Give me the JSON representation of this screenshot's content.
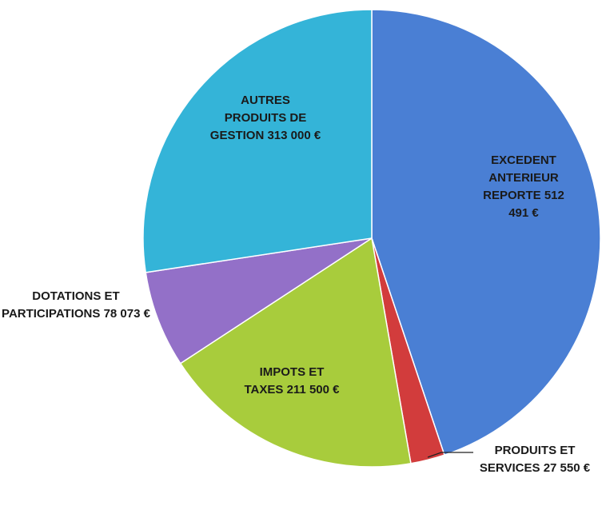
{
  "chart_data": {
    "type": "pie",
    "categories": [
      "EXCEDENT ANTERIEUR REPORTE",
      "PRODUITS ET SERVICES",
      "IMPOTS ET TAXES",
      "DOTATIONS ET PARTICIPATIONS",
      "AUTRES PRODUITS DE GESTION"
    ],
    "values": [
      512491,
      27550,
      211500,
      78073,
      313000
    ],
    "value_labels": [
      "512 491 €",
      "27 550 €",
      "211 500 €",
      "78 073 €",
      "313 000 €"
    ],
    "colors": [
      "#4a7fd4",
      "#d23c3c",
      "#a8cc3c",
      "#9370c8",
      "#34b4d8"
    ]
  }
}
